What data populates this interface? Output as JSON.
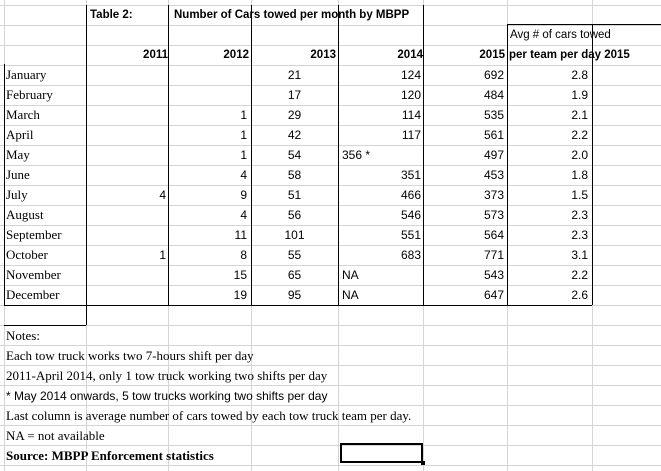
{
  "table": {
    "label": "Table 2:",
    "title": "Number of Cars towed per month by MBPP",
    "header_avg_line1": "Avg # of cars towed",
    "header_avg_line2": "per team per day 2015",
    "columns": [
      "2011",
      "2012",
      "2013",
      "2014",
      "2015"
    ],
    "rows": [
      {
        "month": "January",
        "y2011": "",
        "y2012": "",
        "y2013": "21",
        "y2014": "124",
        "y2014_note": "",
        "y2015": "692",
        "avg": "2.8"
      },
      {
        "month": "February",
        "y2011": "",
        "y2012": "",
        "y2013": "17",
        "y2014": "120",
        "y2014_note": "",
        "y2015": "484",
        "avg": "1.9"
      },
      {
        "month": "March",
        "y2011": "",
        "y2012": "1",
        "y2013": "29",
        "y2014": "114",
        "y2014_note": "",
        "y2015": "535",
        "avg": "2.1"
      },
      {
        "month": "April",
        "y2011": "",
        "y2012": "1",
        "y2013": "42",
        "y2014": "117",
        "y2014_note": "",
        "y2015": "561",
        "avg": "2.2"
      },
      {
        "month": "May",
        "y2011": "",
        "y2012": "1",
        "y2013": "54",
        "y2014": "",
        "y2014_note": "356 *",
        "y2015": "497",
        "avg": "2.0"
      },
      {
        "month": "June",
        "y2011": "",
        "y2012": "4",
        "y2013": "58",
        "y2014": "351",
        "y2014_note": "",
        "y2015": "453",
        "avg": "1.8"
      },
      {
        "month": "July",
        "y2011": "4",
        "y2012": "9",
        "y2013": "51",
        "y2014": "466",
        "y2014_note": "",
        "y2015": "373",
        "avg": "1.5"
      },
      {
        "month": "August",
        "y2011": "",
        "y2012": "4",
        "y2013": "56",
        "y2014": "546",
        "y2014_note": "",
        "y2015": "573",
        "avg": "2.3"
      },
      {
        "month": "September",
        "y2011": "",
        "y2012": "11",
        "y2013": "101",
        "y2014": "551",
        "y2014_note": "",
        "y2015": "564",
        "avg": "2.3"
      },
      {
        "month": "October",
        "y2011": "1",
        "y2012": "8",
        "y2013": "55",
        "y2014": "683",
        "y2014_note": "",
        "y2015": "771",
        "avg": "3.1"
      },
      {
        "month": "November",
        "y2011": "",
        "y2012": "15",
        "y2013": "65",
        "y2014": "",
        "y2014_note": "NA",
        "y2015": "543",
        "avg": "2.2"
      },
      {
        "month": "December",
        "y2011": "",
        "y2012": "19",
        "y2013": "95",
        "y2014": "",
        "y2014_note": "NA",
        "y2015": "647",
        "avg": "2.6"
      }
    ]
  },
  "notes": {
    "heading": "Notes:",
    "lines": [
      "Each tow truck works two 7-hours shift per day",
      "2011-April 2014, only 1 tow truck working two shifts per day",
      "* May 2014 onwards, 5 tow trucks working  two shifts per day",
      "Last column is average number of cars towed by each tow truck team per day.",
      "NA = not available"
    ],
    "source": "Source:  MBPP Enforcement statistics"
  }
}
